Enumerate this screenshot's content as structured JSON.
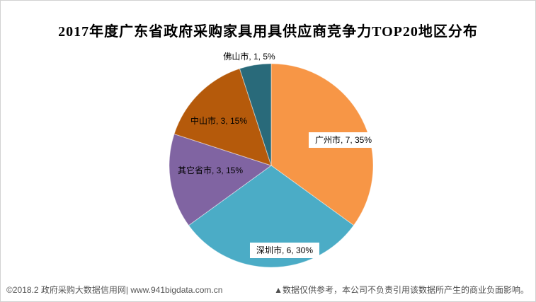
{
  "title": "2017年度广东省政府采购家具用具供应商竞争力TOP20地区分布",
  "chart_data": {
    "type": "pie",
    "title": "2017年度广东省政府采购家具用具供应商竞争力TOP20地区分布",
    "total": 20,
    "start_angle_deg": 0,
    "direction": "clockwise",
    "legend": "none",
    "label_format": "category, value, percent",
    "slices": [
      {
        "label": "广州市",
        "value": 7,
        "percent": "35%",
        "color": "#F79646",
        "data_label": "广州市, 7, 35%"
      },
      {
        "label": "深圳市",
        "value": 6,
        "percent": "30%",
        "color": "#4BACC6",
        "data_label": "深圳市, 6, 30%"
      },
      {
        "label": "其它省市",
        "value": 3,
        "percent": "15%",
        "color": "#8064A2",
        "data_label": "其它省市, 3, 15%"
      },
      {
        "label": "中山市",
        "value": 3,
        "percent": "15%",
        "color": "#B55A0B",
        "data_label": "中山市, 3, 15%"
      },
      {
        "label": "佛山市",
        "value": 1,
        "percent": "5%",
        "color": "#296A7A",
        "data_label": "佛山市, 1, 5%"
      }
    ]
  },
  "footer": {
    "left": "©2018.2 政府采购大数据信用网| www.941bigdata.com.cn",
    "right": "▲数据仅供参考，本公司不负责引用该数据所产生的商业负面影响。"
  }
}
